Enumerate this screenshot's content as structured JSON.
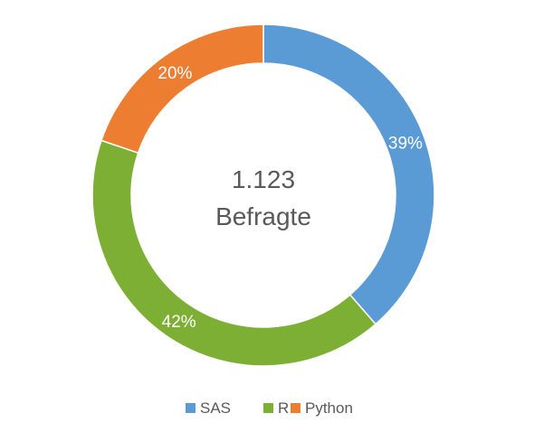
{
  "chart_data": {
    "type": "pie",
    "donut": true,
    "center_text": [
      "1.123",
      "Befragte"
    ],
    "categories": [
      "SAS",
      "R",
      "Python"
    ],
    "values": [
      39,
      42,
      20
    ],
    "value_labels": [
      "39%",
      "42%",
      "20%"
    ],
    "colors": [
      "#5B9BD5",
      "#7DAF34",
      "#ED7D31"
    ],
    "legend_position": "bottom"
  }
}
